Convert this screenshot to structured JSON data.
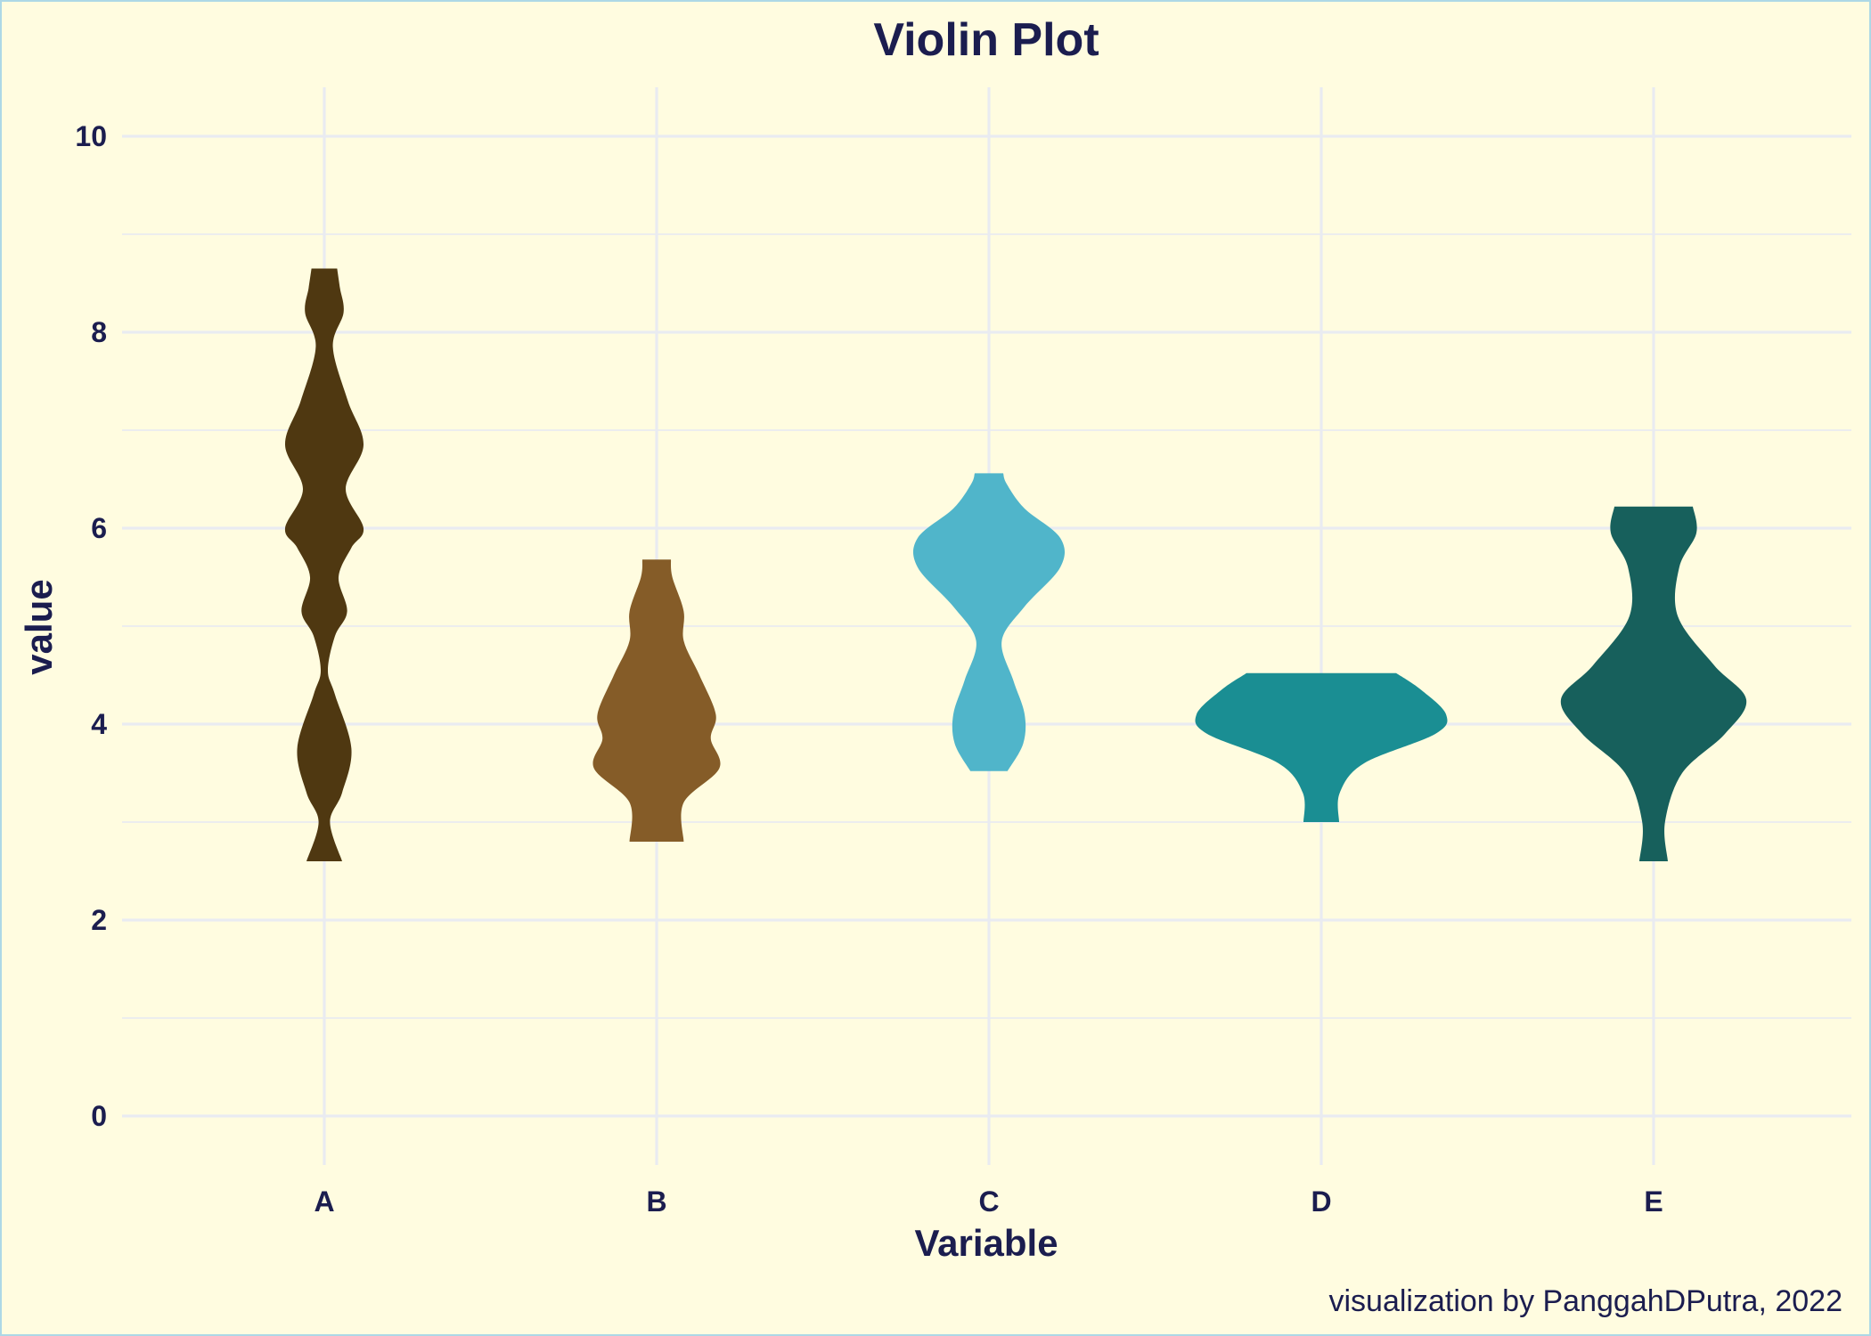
{
  "chart_data": {
    "type": "violin",
    "title": "Violin Plot",
    "xlabel": "Variable",
    "ylabel": "value",
    "caption": "visualization by PanggahDPutra, 2022",
    "categories": [
      "A",
      "B",
      "C",
      "D",
      "E"
    ],
    "ylim": [
      -0.5,
      10.5
    ],
    "yticks": [
      0,
      2,
      4,
      6,
      8,
      10
    ],
    "grid": true,
    "legend": "none",
    "series": [
      {
        "category": "A",
        "color": "#4f3811",
        "min": 2.6,
        "max": 8.65,
        "density": [
          [
            2.6,
            0.25
          ],
          [
            3.0,
            0.08
          ],
          [
            3.3,
            0.25
          ],
          [
            3.75,
            0.38
          ],
          [
            4.3,
            0.15
          ],
          [
            4.55,
            0.05
          ],
          [
            4.9,
            0.15
          ],
          [
            5.15,
            0.32
          ],
          [
            5.5,
            0.2
          ],
          [
            5.8,
            0.38
          ],
          [
            6.0,
            0.55
          ],
          [
            6.4,
            0.3
          ],
          [
            6.85,
            0.55
          ],
          [
            7.3,
            0.33
          ],
          [
            7.85,
            0.12
          ],
          [
            8.2,
            0.27
          ],
          [
            8.45,
            0.22
          ],
          [
            8.65,
            0.18
          ]
        ]
      },
      {
        "category": "B",
        "color": "#855c28",
        "min": 2.8,
        "max": 5.68,
        "density": [
          [
            2.8,
            0.38
          ],
          [
            3.2,
            0.38
          ],
          [
            3.55,
            0.88
          ],
          [
            3.85,
            0.76
          ],
          [
            4.1,
            0.83
          ],
          [
            4.5,
            0.6
          ],
          [
            4.85,
            0.38
          ],
          [
            5.15,
            0.38
          ],
          [
            5.5,
            0.22
          ],
          [
            5.68,
            0.2
          ]
        ]
      },
      {
        "category": "C",
        "color": "#50b5ca",
        "min": 3.52,
        "max": 6.56,
        "density": [
          [
            3.52,
            0.26
          ],
          [
            3.8,
            0.48
          ],
          [
            4.1,
            0.5
          ],
          [
            4.45,
            0.34
          ],
          [
            4.85,
            0.18
          ],
          [
            5.2,
            0.5
          ],
          [
            5.6,
            1.0
          ],
          [
            5.9,
            1.0
          ],
          [
            6.2,
            0.5
          ],
          [
            6.45,
            0.25
          ],
          [
            6.56,
            0.2
          ]
        ]
      },
      {
        "category": "D",
        "color": "#1a8e93",
        "min": 3.0,
        "max": 4.52,
        "density": [
          [
            3.0,
            0.25
          ],
          [
            3.3,
            0.26
          ],
          [
            3.6,
            0.6
          ],
          [
            3.9,
            1.6
          ],
          [
            4.1,
            1.75
          ],
          [
            4.35,
            1.4
          ],
          [
            4.52,
            1.05
          ]
        ]
      },
      {
        "category": "E",
        "color": "#17605c",
        "min": 2.6,
        "max": 6.22,
        "density": [
          [
            2.6,
            0.2
          ],
          [
            3.0,
            0.16
          ],
          [
            3.5,
            0.4
          ],
          [
            3.9,
            1.0
          ],
          [
            4.25,
            1.3
          ],
          [
            4.6,
            0.85
          ],
          [
            5.1,
            0.34
          ],
          [
            5.6,
            0.36
          ],
          [
            5.95,
            0.6
          ],
          [
            6.22,
            0.55
          ]
        ]
      }
    ]
  }
}
